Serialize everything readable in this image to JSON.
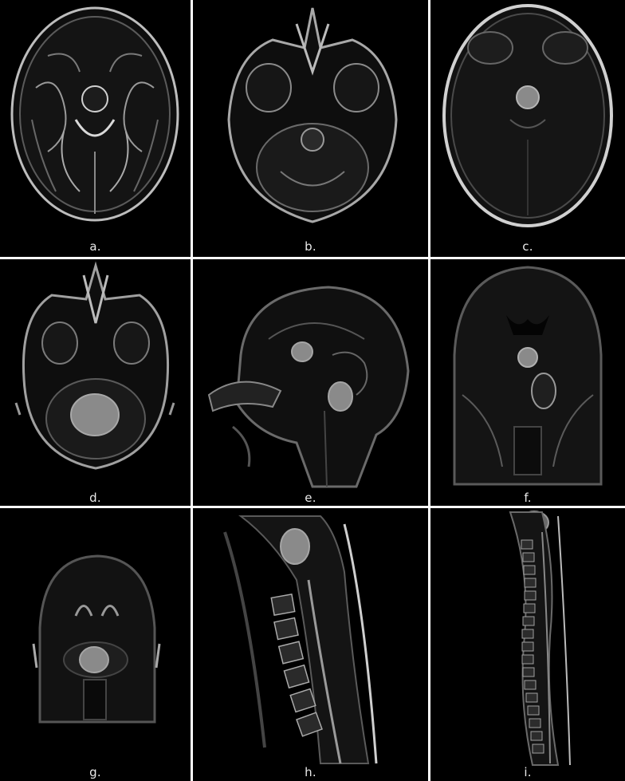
{
  "figure": {
    "panels": [
      {
        "label": "a.",
        "icon": "axial-t2-brain-mri"
      },
      {
        "label": "b.",
        "icon": "axial-posterior-fossa-mri"
      },
      {
        "label": "c.",
        "icon": "axial-contrast-brain-mri-with-suprasellar-lesion"
      },
      {
        "label": "d.",
        "icon": "axial-contrast-posterior-fossa-mri-with-lesion"
      },
      {
        "label": "e.",
        "icon": "sagittal-contrast-brain-mri"
      },
      {
        "label": "f.",
        "icon": "coronal-contrast-brain-mri"
      },
      {
        "label": "g.",
        "icon": "coronal-contrast-posterior-fossa-mri"
      },
      {
        "label": "h.",
        "icon": "sagittal-cervical-spine-mri"
      },
      {
        "label": "i.",
        "icon": "sagittal-whole-spine-mri"
      }
    ]
  },
  "colors": {
    "background": "#000000",
    "separator": "#ffffff",
    "label": "#eaeaea",
    "lesion": "#8a8a8a"
  }
}
